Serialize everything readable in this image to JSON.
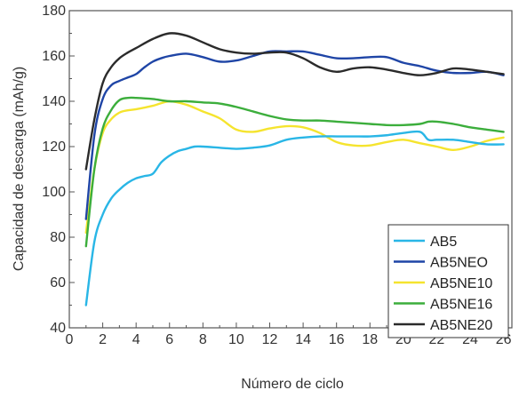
{
  "chart_data": {
    "type": "line",
    "xlabel": "Número de ciclo",
    "ylabel": "Capacidad de descarga (mAh/g)",
    "xlim": [
      0,
      26.5
    ],
    "ylim": [
      40,
      180
    ],
    "xticks": [
      0,
      2,
      4,
      6,
      8,
      10,
      12,
      14,
      16,
      18,
      20,
      22,
      24,
      26
    ],
    "yticks": [
      40,
      60,
      80,
      100,
      120,
      140,
      160,
      180
    ],
    "grid": false,
    "legend_position": "bottom-right",
    "series": [
      {
        "name": "AB5",
        "color": "#29b6e6",
        "x": [
          1,
          1.5,
          2,
          2.5,
          3,
          3.5,
          4,
          4.5,
          5,
          5.5,
          6,
          6.5,
          7,
          7.5,
          8,
          9,
          10,
          11,
          12,
          13,
          14,
          15,
          16,
          17,
          18,
          19,
          20,
          21,
          21.5,
          22,
          23,
          24,
          25,
          26
        ],
        "y": [
          50,
          78,
          90,
          97,
          101,
          104,
          106,
          107,
          108,
          113,
          116,
          118,
          119,
          120,
          120,
          119.5,
          119,
          119.5,
          120.5,
          123,
          124,
          124.5,
          124.5,
          124.5,
          124.5,
          125,
          126,
          126.5,
          123,
          123,
          123,
          122,
          121,
          121
        ]
      },
      {
        "name": "AB5NEO",
        "color": "#1f45a6",
        "x": [
          1,
          1.5,
          2,
          2.5,
          3,
          3.5,
          4,
          4.5,
          5,
          5.5,
          6,
          7,
          8,
          9,
          10,
          11,
          12,
          13,
          14,
          15,
          16,
          17,
          18,
          19,
          20,
          21,
          22,
          23,
          24,
          25,
          26
        ],
        "y": [
          88,
          125,
          141,
          147,
          149,
          150.5,
          152,
          155,
          157.5,
          159,
          160,
          161,
          159.5,
          157.5,
          158,
          160,
          162,
          162,
          162,
          160.5,
          159,
          159,
          159.5,
          159.5,
          157,
          155.5,
          153.5,
          152.5,
          152.5,
          153,
          151.5
        ]
      },
      {
        "name": "AB5NE10",
        "color": "#f5e42e",
        "x": [
          1,
          1.5,
          2,
          2.5,
          3,
          3.5,
          4,
          5,
          6,
          7,
          8,
          9,
          10,
          11,
          12,
          13,
          14,
          15,
          16,
          17,
          18,
          19,
          20,
          21,
          22,
          23,
          24,
          25,
          26
        ],
        "y": [
          82,
          110,
          126,
          132,
          135,
          136,
          136.5,
          138,
          140,
          138.5,
          135.5,
          132.5,
          127.5,
          126.5,
          128,
          129,
          128.5,
          126,
          122,
          120.5,
          120.5,
          122,
          123,
          121.5,
          120,
          118.5,
          120,
          122.5,
          124
        ]
      },
      {
        "name": "AB5NE16",
        "color": "#3cae3c",
        "x": [
          1,
          1.5,
          2,
          2.5,
          3,
          3.5,
          4,
          5,
          6,
          7,
          8,
          9,
          10,
          11,
          12,
          13,
          14,
          15,
          16,
          17,
          18,
          19,
          20,
          21,
          21.5,
          22,
          23,
          24,
          25,
          26
        ],
        "y": [
          76,
          110,
          128,
          136,
          140.5,
          141.5,
          141.5,
          141,
          140,
          140,
          139.5,
          139,
          137.5,
          135.5,
          133.5,
          132,
          131.5,
          131.5,
          131,
          130.5,
          130,
          129.5,
          129.5,
          130,
          131,
          131,
          130,
          128.5,
          127.5,
          126.5
        ]
      },
      {
        "name": "AB5NE20",
        "color": "#2b2b2b",
        "x": [
          1,
          1.5,
          2,
          2.5,
          3,
          3.5,
          4,
          5,
          6,
          7,
          8,
          9,
          10,
          11,
          12,
          13,
          14,
          15,
          16,
          17,
          18,
          19,
          20,
          21,
          22,
          23,
          24,
          25,
          26
        ],
        "y": [
          110,
          132,
          148,
          155,
          159,
          161.5,
          163.5,
          167.5,
          170,
          169,
          166,
          163,
          161.5,
          161,
          161.5,
          161.5,
          159,
          155,
          153,
          154.5,
          155,
          154,
          152.5,
          151.5,
          152.5,
          154.5,
          154,
          153,
          152
        ]
      }
    ]
  }
}
